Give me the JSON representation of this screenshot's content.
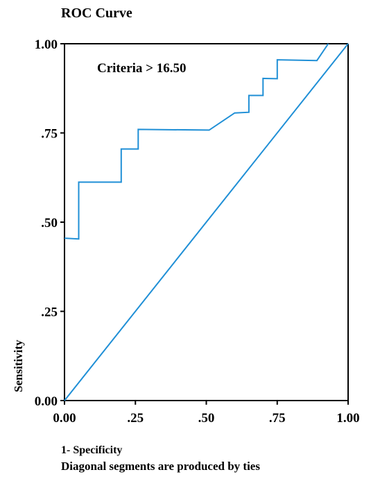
{
  "chart_data": {
    "type": "line",
    "title": "ROC Curve",
    "xlabel": "1- Specificity",
    "ylabel": "Sensitivity",
    "xlim": [
      0,
      1
    ],
    "ylim": [
      0,
      1
    ],
    "xticks": [
      "0.00",
      ".25",
      ".50",
      ".75",
      "1.00"
    ],
    "yticks": [
      "0.00",
      ".25",
      ".50",
      ".75",
      "1.00"
    ],
    "annotation": "Criteria > 16.50",
    "footnote": "Diagonal segments are produced by ties",
    "grid": false,
    "series": [
      {
        "x": [
          0.0,
          0.05,
          0.05,
          0.2,
          0.2,
          0.26,
          0.26,
          0.51,
          0.6,
          0.65,
          0.65,
          0.7,
          0.7,
          0.75,
          0.75,
          0.89,
          0.93
        ],
        "y": [
          0.455,
          0.453,
          0.612,
          0.612,
          0.705,
          0.705,
          0.76,
          0.758,
          0.806,
          0.808,
          0.855,
          0.855,
          0.903,
          0.902,
          0.955,
          0.953,
          1.0
        ],
        "color": "#1f8fd6"
      },
      {
        "x": [
          0,
          1
        ],
        "y": [
          0,
          1
        ],
        "color": "#1f8fd6"
      }
    ]
  }
}
